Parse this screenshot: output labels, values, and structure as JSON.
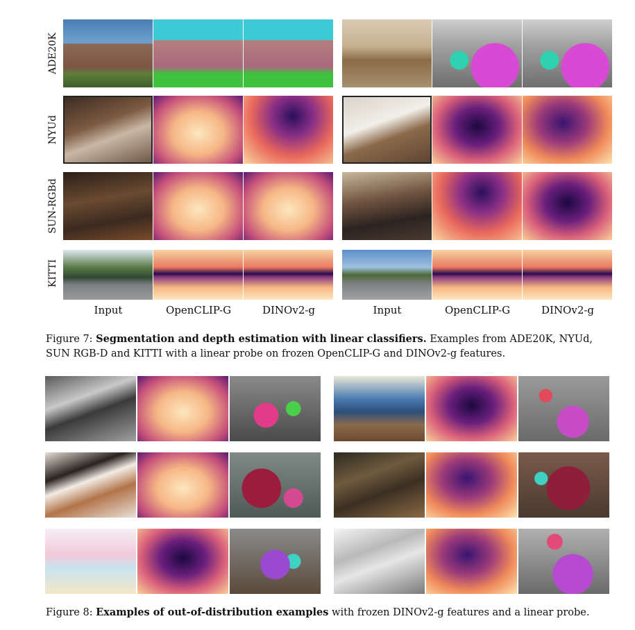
{
  "figure7": {
    "row_labels": [
      "ADE20K",
      "NYUd",
      "SUN-RGBd",
      "KITTI"
    ],
    "column_labels": [
      "Input",
      "OpenCLIP-G",
      "DINOv2-g",
      "Input",
      "OpenCLIP-G",
      "DINOv2-g"
    ],
    "caption_prefix": "Figure 7: ",
    "caption_bold": "Segmentation and depth estimation with linear classifiers.",
    "caption_rest": " Examples from ADE20K, NYUd, SUN RGB-D and KITTI with a linear probe on frozen OpenCLIP-G and DINOv2-g features."
  },
  "figure8": {
    "caption_prefix": "Figure 8: ",
    "caption_bold": "Examples of out-of-distribution examples",
    "caption_rest": " with frozen DINOv2-g features and a linear probe."
  }
}
